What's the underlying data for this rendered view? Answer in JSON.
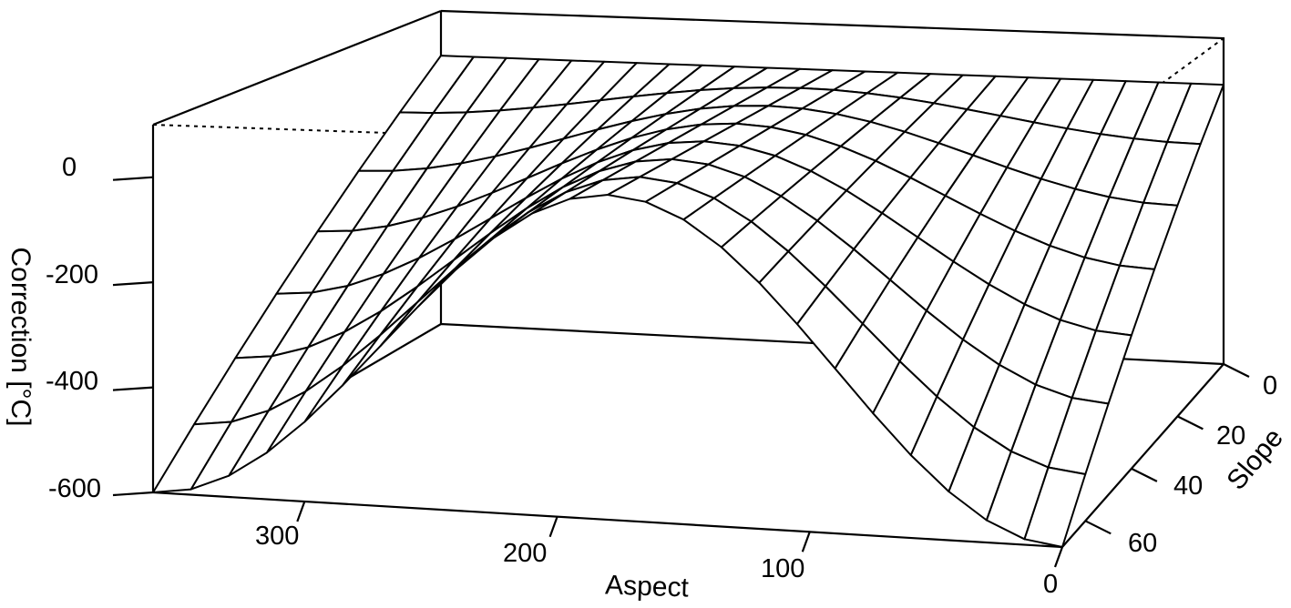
{
  "chart_data": {
    "type": "surface3d",
    "title": "",
    "xlabel": "Aspect",
    "ylabel": "Slope",
    "zlabel": "Correction [°C]",
    "x_range": [
      0,
      360
    ],
    "y_range": [
      0,
      70
    ],
    "z_range": [
      -600,
      100
    ],
    "x_ticks": [
      0,
      100,
      200,
      300
    ],
    "y_ticks": [
      0,
      20,
      40,
      60
    ],
    "z_ticks": [
      -600,
      -400,
      -200,
      0
    ],
    "x_grid": [
      0,
      15,
      30,
      45,
      60,
      75,
      90,
      105,
      120,
      135,
      150,
      165,
      180,
      195,
      210,
      225,
      240,
      255,
      270,
      285,
      300,
      315,
      330,
      345,
      360
    ],
    "y_grid": [
      0,
      10,
      20,
      30,
      40,
      50,
      60,
      70
    ],
    "surface_description": "Correction = -(slope/70)*600*(1+cos(aspect))/2 ; 0 at slope 0 and at aspect 180, minimum -600 at slope 70 with aspect 0/360",
    "z_at_slope70": {
      "aspect": [
        0,
        90,
        180,
        270,
        360
      ],
      "correction": [
        -600,
        -300,
        0,
        -300,
        -600
      ]
    },
    "box": true,
    "grid_style": "wireframe, black lines on white"
  },
  "labels": {
    "z_ticks": [
      "0",
      "-200",
      "-400",
      "-600"
    ],
    "x_ticks": [
      "300",
      "200",
      "100",
      "0"
    ],
    "y_ticks": [
      "0",
      "20",
      "40",
      "60"
    ],
    "xlabel": "Aspect",
    "ylabel": "Slope",
    "zlabel": "Correction [°C]"
  },
  "colors": {
    "line": "#000000",
    "background": "#ffffff"
  }
}
